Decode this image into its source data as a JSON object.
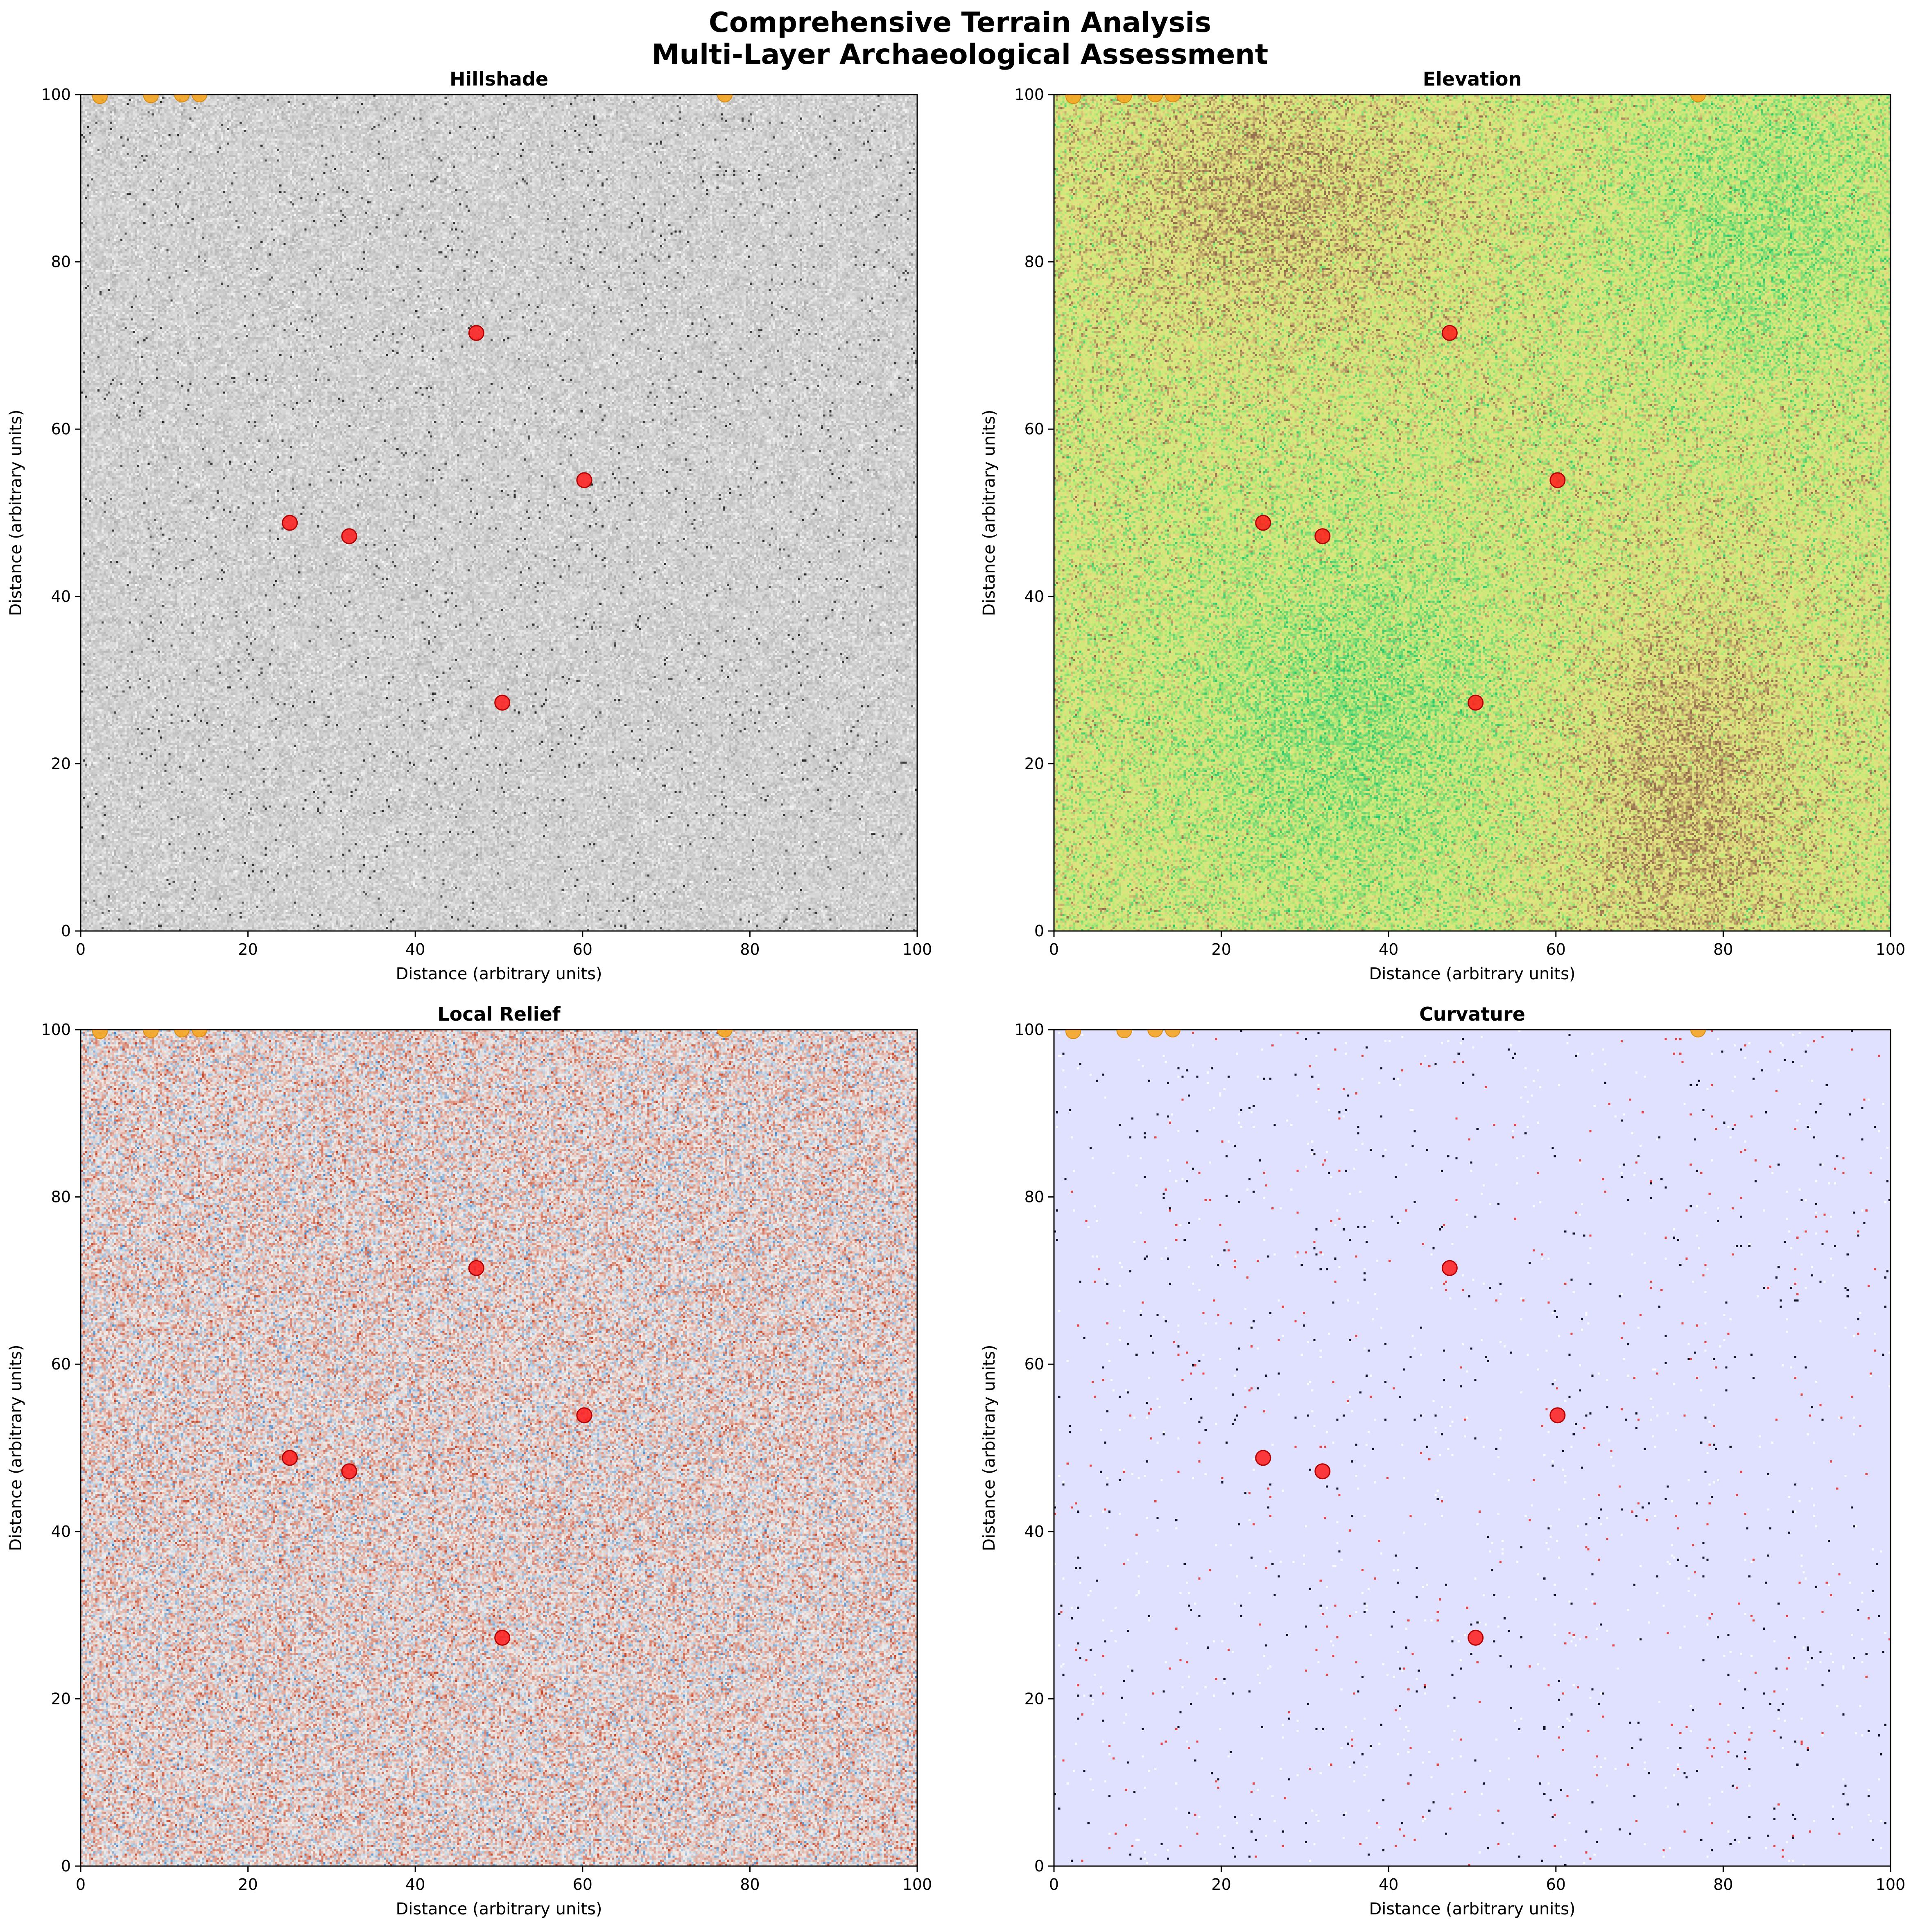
{
  "figure": {
    "title_line1": "Comprehensive Terrain Analysis",
    "title_line2": "Multi-Layer Archaeological Assessment"
  },
  "colors": {
    "site_marker": "#ff1a1a",
    "edge_marker": "#f5a623",
    "hillshade_base": "#d0d0d0",
    "curvature_base": "#e0e0ff"
  },
  "chart_data": [
    {
      "type": "heatmap",
      "title": "Hillshade",
      "layer": "hillshade",
      "xlabel": "Distance (arbitrary units)",
      "ylabel": "Distance (arbitrary units)",
      "xlim": [
        0,
        100
      ],
      "ylim": [
        0,
        100
      ],
      "xticks": [
        0,
        20,
        40,
        60,
        80,
        100
      ],
      "yticks": [
        0,
        20,
        40,
        60,
        80,
        100
      ],
      "grid": false
    },
    {
      "type": "heatmap",
      "title": "Elevation",
      "layer": "elevation",
      "xlabel": "Distance (arbitrary units)",
      "ylabel": "Distance (arbitrary units)",
      "xlim": [
        0,
        100
      ],
      "ylim": [
        0,
        100
      ],
      "xticks": [
        0,
        20,
        40,
        60,
        80,
        100
      ],
      "yticks": [
        0,
        20,
        40,
        60,
        80,
        100
      ],
      "grid": false
    },
    {
      "type": "heatmap",
      "title": "Local Relief",
      "layer": "relief",
      "xlabel": "Distance (arbitrary units)",
      "ylabel": "Distance (arbitrary units)",
      "xlim": [
        0,
        100
      ],
      "ylim": [
        0,
        100
      ],
      "xticks": [
        0,
        20,
        40,
        60,
        80,
        100
      ],
      "yticks": [
        0,
        20,
        40,
        60,
        80,
        100
      ],
      "grid": false
    },
    {
      "type": "heatmap",
      "title": "Curvature",
      "layer": "curvature",
      "xlabel": "Distance (arbitrary units)",
      "ylabel": "Distance (arbitrary units)",
      "xlim": [
        0,
        100
      ],
      "ylim": [
        0,
        100
      ],
      "xticks": [
        0,
        20,
        40,
        60,
        80,
        100
      ],
      "yticks": [
        0,
        20,
        40,
        60,
        80,
        100
      ],
      "grid": false
    }
  ],
  "sites": [
    {
      "x": 47.3,
      "y": 71.5
    },
    {
      "x": 60.2,
      "y": 53.9
    },
    {
      "x": 25.0,
      "y": 48.8
    },
    {
      "x": 32.1,
      "y": 47.2
    },
    {
      "x": 50.4,
      "y": 27.3
    }
  ],
  "edge_sites": [
    {
      "x": 2.3,
      "y": 99.8
    },
    {
      "x": 8.4,
      "y": 99.9
    },
    {
      "x": 12.1,
      "y": 100.0
    },
    {
      "x": 14.2,
      "y": 100.0
    },
    {
      "x": 77.0,
      "y": 100.0
    }
  ]
}
